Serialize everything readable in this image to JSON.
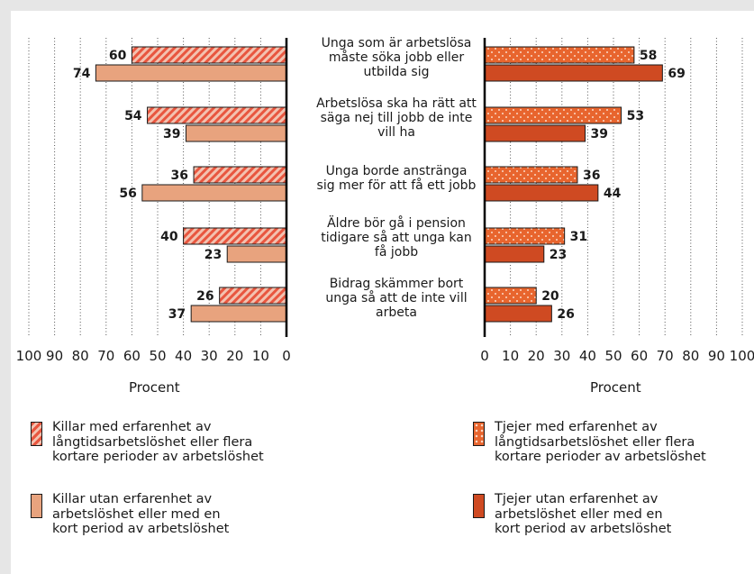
{
  "chart_data": {
    "type": "bar",
    "orientation": "horizontal",
    "categories": [
      "Unga som är arbetslösa måste söka jobb eller utbilda sig",
      "Arbetslösa ska ha rätt att säga nej till jobb de inte vill ha",
      "Unga borde anstränga sig mer för att få ett jobb",
      "Äldre bör gå i pension tidigare så att unga kan få jobb",
      "Bidrag skämmer bort unga så att de inte vill arbeta"
    ],
    "category_lines": [
      [
        "Unga som är arbetslösa",
        "måste söka jobb eller",
        "utbilda sig"
      ],
      [
        "Arbetslösa ska ha rätt att",
        "säga nej till jobb de inte",
        "vill ha"
      ],
      [
        "Unga borde anstränga",
        "sig mer för att få ett jobb"
      ],
      [
        "Äldre bör gå i pension",
        "tidigare så att unga kan",
        "få jobb"
      ],
      [
        "Bidrag skämmer bort",
        "unga så att de inte vill",
        "arbeta"
      ]
    ],
    "panels": [
      {
        "side": "left",
        "xlabel": "Procent",
        "xlim": [
          0,
          100
        ],
        "ticks": [
          100,
          90,
          80,
          70,
          60,
          50,
          40,
          30,
          20,
          10,
          0
        ],
        "series": [
          {
            "name": "Killar med erfarenhet av långtidsarbetslöshet eller flera kortare perioder av arbetslöshet",
            "values": [
              60,
              54,
              36,
              40,
              26
            ],
            "color": "#e8563f",
            "pattern": "stripes"
          },
          {
            "name": "Killar utan erfarenhet av arbetslöshet eller med en kort period av arbetslöshet",
            "values": [
              74,
              39,
              56,
              23,
              37
            ],
            "color": "#e8a37e",
            "pattern": "solid"
          }
        ]
      },
      {
        "side": "right",
        "xlabel": "Procent",
        "xlim": [
          0,
          100
        ],
        "ticks": [
          0,
          10,
          20,
          30,
          40,
          50,
          60,
          70,
          80,
          90,
          100
        ],
        "series": [
          {
            "name": "Tjejer med erfarenhet av långtidsarbetslöshet eller flera kortare perioder av arbetslöshet",
            "values": [
              58,
              53,
              36,
              31,
              20
            ],
            "color": "#e8652e",
            "pattern": "dots"
          },
          {
            "name": "Tjejer utan erfarenhet av arbetslöshet eller med en kort period av arbetslöshet",
            "values": [
              69,
              39,
              44,
              23,
              26
            ],
            "color": "#cf4a22",
            "pattern": "solid"
          }
        ]
      }
    ],
    "grid": true,
    "legend_placement": "bottom"
  },
  "legend": {
    "killar_med": [
      "Killar med erfarenhet av",
      "långtidsarbetslöshet eller flera",
      "kortare perioder av arbetslöshet"
    ],
    "killar_utan": [
      "Killar utan erfarenhet av",
      "arbetslöshet eller med en",
      "kort period av arbetslöshet"
    ],
    "tjejer_med": [
      "Tjejer med erfarenhet av",
      "långtidsarbetslöshet eller flera",
      "kortare perioder av arbetslöshet"
    ],
    "tjejer_utan": [
      "Tjejer utan erfarenhet av",
      "arbetslöshet eller med en",
      "kort period av arbetslöshet"
    ]
  }
}
